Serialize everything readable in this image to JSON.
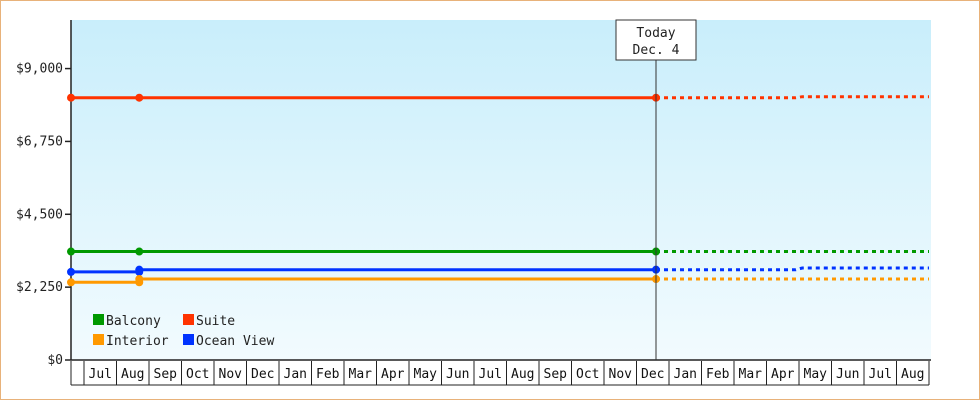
{
  "chart_data": {
    "type": "line",
    "title": "",
    "xlabel": "",
    "ylabel": "",
    "ylim": [
      0,
      10500
    ],
    "y_ticks": [
      0,
      2250,
      4500,
      6750,
      9000
    ],
    "y_tick_labels": [
      "$0",
      "$2,250",
      "$4,500",
      "$6,750",
      "$9,000"
    ],
    "months": [
      "Jul",
      "Aug",
      "Sep",
      "Oct",
      "Nov",
      "Dec",
      "Jan",
      "Feb",
      "Mar",
      "Apr",
      "May",
      "Jun",
      "Jul",
      "Aug",
      "Sep",
      "Oct",
      "Nov",
      "Dec",
      "Jan",
      "Feb",
      "Mar",
      "Apr",
      "May",
      "Jun",
      "Jul",
      "Aug"
    ],
    "today_marker": {
      "line1": "Today",
      "line2": "Dec. 4",
      "month_index": 17.1
    },
    "legend_placement": "bottom-left",
    "series": [
      {
        "name": "Suite",
        "color": "#ff3300",
        "history": [
          [
            -0.5,
            8100
          ],
          [
            1.2,
            8100
          ],
          [
            17.1,
            8100
          ]
        ],
        "forecast": [
          [
            17.1,
            8100
          ],
          [
            21.4,
            8100
          ],
          [
            21.6,
            8130
          ],
          [
            26.8,
            8130
          ]
        ]
      },
      {
        "name": "Balcony",
        "color": "#009900",
        "history": [
          [
            -0.5,
            3350
          ],
          [
            1.2,
            3350
          ],
          [
            17.1,
            3350
          ]
        ],
        "forecast": [
          [
            17.1,
            3350
          ],
          [
            26.8,
            3350
          ]
        ]
      },
      {
        "name": "Ocean View",
        "color": "#0033ff",
        "history": [
          [
            -0.5,
            2720
          ],
          [
            1.2,
            2720
          ],
          [
            1.2,
            2790
          ],
          [
            17.1,
            2790
          ]
        ],
        "forecast": [
          [
            17.1,
            2790
          ],
          [
            21.4,
            2790
          ],
          [
            21.6,
            2840
          ],
          [
            26.8,
            2840
          ]
        ]
      },
      {
        "name": "Interior",
        "color": "#ff9900",
        "history": [
          [
            -0.5,
            2400
          ],
          [
            1.2,
            2400
          ],
          [
            1.2,
            2500
          ],
          [
            17.1,
            2500
          ]
        ],
        "forecast": [
          [
            17.1,
            2500
          ],
          [
            26.8,
            2500
          ]
        ]
      }
    ],
    "legend": [
      {
        "name": "Balcony",
        "color": "#009900"
      },
      {
        "name": "Suite",
        "color": "#ff3300"
      },
      {
        "name": "Interior",
        "color": "#ff9900"
      },
      {
        "name": "Ocean View",
        "color": "#0033ff"
      }
    ]
  }
}
